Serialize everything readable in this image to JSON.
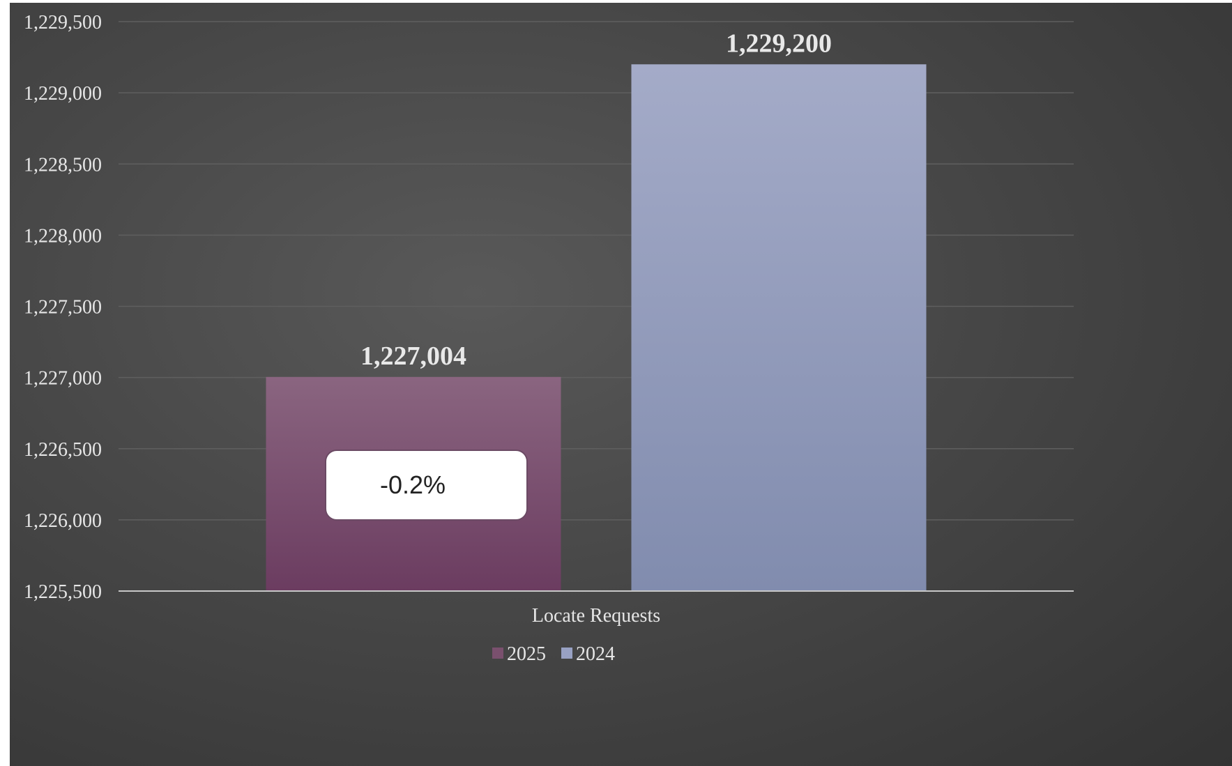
{
  "chart_data": {
    "type": "bar",
    "categories": [
      "Locate Requests"
    ],
    "series": [
      {
        "name": "2025",
        "values": [
          1227004
        ],
        "color": "#7a506e",
        "label": "1,227,004"
      },
      {
        "name": "2024",
        "values": [
          1229200
        ],
        "color": "#98a1c3",
        "label": "1,229,200"
      }
    ],
    "ylim": [
      1225500,
      1229500
    ],
    "ytick_step": 500,
    "ytick_labels": [
      "1,225,500",
      "1,226,000",
      "1,226,500",
      "1,227,000",
      "1,227,500",
      "1,228,000",
      "1,228,500",
      "1,229,000",
      "1,229,500"
    ],
    "grid": true,
    "legend_position": "bottom",
    "annotation": "-0.2%"
  }
}
